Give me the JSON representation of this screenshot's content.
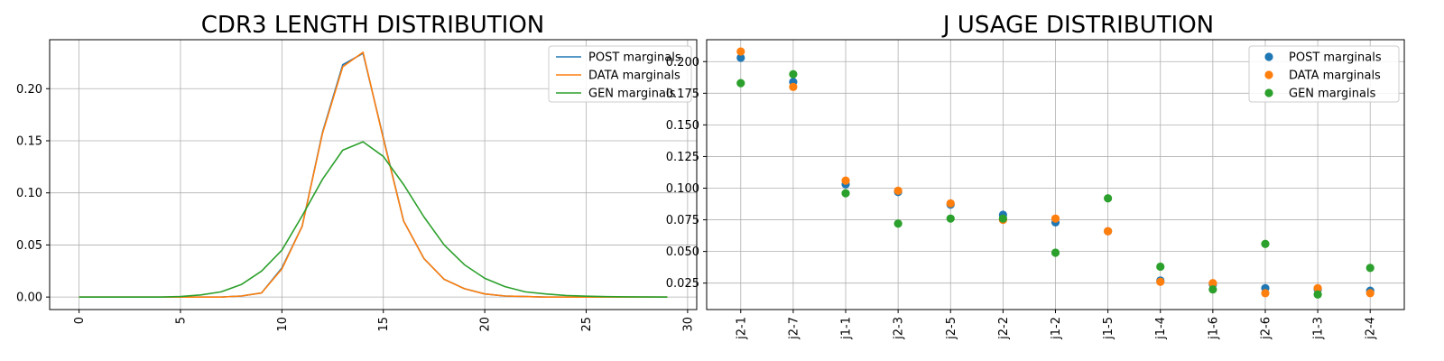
{
  "chart_data": [
    {
      "type": "line",
      "title": "CDR3 LENGTH DISTRIBUTION",
      "xlabel": "",
      "ylabel": "",
      "xlim": [
        -1.45,
        30.45
      ],
      "ylim": [
        -0.012,
        0.247
      ],
      "xticks": [
        0,
        5,
        10,
        15,
        20,
        25,
        30
      ],
      "xtick_labels": [
        "0",
        "5",
        "10",
        "15",
        "20",
        "25",
        "30"
      ],
      "xtick_rotation": 90,
      "yticks": [
        0.0,
        0.05,
        0.1,
        0.15,
        0.2
      ],
      "ytick_labels": [
        "0.00",
        "0.05",
        "0.10",
        "0.15",
        "0.20"
      ],
      "grid": true,
      "legend_position": "top-right",
      "x": [
        0,
        1,
        2,
        3,
        4,
        5,
        6,
        7,
        8,
        9,
        10,
        11,
        12,
        13,
        14,
        15,
        16,
        17,
        18,
        19,
        20,
        21,
        22,
        23,
        24,
        25,
        26,
        27,
        28,
        29
      ],
      "series": [
        {
          "name": "POST marginals",
          "color": "#1f77b4",
          "values": [
            0,
            0,
            0,
            0,
            0,
            0,
            0,
            0,
            0.001,
            0.004,
            0.028,
            0.068,
            0.158,
            0.223,
            0.234,
            0.153,
            0.073,
            0.037,
            0.017,
            0.008,
            0.003,
            0.001,
            0.0005,
            0,
            0,
            0,
            0,
            0,
            0,
            0
          ]
        },
        {
          "name": "DATA marginals",
          "color": "#ff7f0e",
          "values": [
            0,
            0,
            0,
            0,
            0,
            0,
            0,
            0,
            0.001,
            0.004,
            0.027,
            0.068,
            0.157,
            0.221,
            0.235,
            0.152,
            0.073,
            0.037,
            0.017,
            0.008,
            0.003,
            0.001,
            0.0005,
            0,
            0,
            0,
            0,
            0,
            0,
            0
          ]
        },
        {
          "name": "GEN marginals",
          "color": "#2ca02c",
          "values": [
            0,
            0,
            0,
            0,
            0,
            0.0005,
            0.002,
            0.005,
            0.012,
            0.025,
            0.045,
            0.078,
            0.113,
            0.141,
            0.149,
            0.135,
            0.108,
            0.077,
            0.05,
            0.031,
            0.018,
            0.01,
            0.005,
            0.003,
            0.0015,
            0.0008,
            0.0004,
            0.0002,
            0.0001,
            0
          ]
        }
      ]
    },
    {
      "type": "scatter",
      "title": "J USAGE DISTRIBUTION",
      "xlabel": "",
      "ylabel": "",
      "ylim": [
        0.0041,
        0.2173
      ],
      "categories": [
        "j2-1",
        "j2-7",
        "j1-1",
        "j2-3",
        "j2-5",
        "j2-2",
        "j1-2",
        "j1-5",
        "j1-4",
        "j1-6",
        "j2-6",
        "j1-3",
        "j2-4"
      ],
      "xtick_rotation": 90,
      "yticks": [
        0.025,
        0.05,
        0.075,
        0.1,
        0.125,
        0.15,
        0.175,
        0.2
      ],
      "ytick_labels": [
        "0.025",
        "0.050",
        "0.075",
        "0.100",
        "0.125",
        "0.150",
        "0.175",
        "0.200"
      ],
      "grid": true,
      "legend_position": "top-right",
      "series": [
        {
          "name": "POST marginals",
          "color": "#1f77b4",
          "values": [
            0.203,
            0.184,
            0.103,
            0.097,
            0.087,
            0.079,
            0.073,
            0.066,
            0.027,
            0.024,
            0.021,
            0.02,
            0.019
          ]
        },
        {
          "name": "DATA marginals",
          "color": "#ff7f0e",
          "values": [
            0.208,
            0.18,
            0.106,
            0.098,
            0.088,
            0.075,
            0.076,
            0.066,
            0.026,
            0.025,
            0.017,
            0.021,
            0.017
          ]
        },
        {
          "name": "GEN marginals",
          "color": "#2ca02c",
          "values": [
            0.183,
            0.19,
            0.096,
            0.072,
            0.076,
            0.076,
            0.049,
            0.092,
            0.038,
            0.02,
            0.056,
            0.016,
            0.037
          ]
        }
      ]
    }
  ]
}
